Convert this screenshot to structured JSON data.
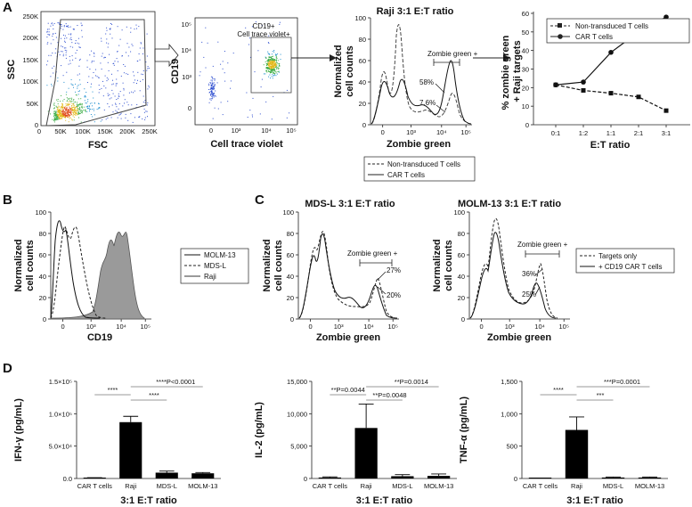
{
  "panels": {
    "A": "A",
    "B": "B",
    "C": "C",
    "D": "D"
  },
  "a1": {
    "xlabel": "FSC",
    "ylabel": "SSC",
    "xticks": [
      "0",
      "50K",
      "100K",
      "150K",
      "200K",
      "250K"
    ],
    "yticks": [
      "0",
      "50K",
      "100K",
      "150K",
      "200K",
      "250K"
    ]
  },
  "a2": {
    "xlabel": "Cell trace violet",
    "ylabel": "CD19",
    "xticks": [
      "0",
      "10³",
      "10⁴",
      "10⁵"
    ],
    "yticks": [
      "0",
      "10³",
      "10⁴",
      "10⁵"
    ],
    "gate_label_1": "CD19+",
    "gate_label_2": "Cell trace violet+"
  },
  "a3": {
    "title": "Raji 3:1 E:T ratio",
    "xlabel": "Zombie green",
    "ylabel_1": "Normalized",
    "ylabel_2": "cell counts",
    "xticks": [
      "0",
      "10³",
      "10⁴",
      "10⁵"
    ],
    "yticks": [
      "0",
      "20",
      "40",
      "60",
      "80",
      "100"
    ],
    "gate": "Zombie green +",
    "pct_1": "58%",
    "pct_2": "7.6%",
    "legend": [
      "Non-transduced T cells",
      "CAR T cells"
    ]
  },
  "chart_data": [
    {
      "type": "line",
      "title": "",
      "xlabel": "E:T ratio",
      "ylabel": "% zombie green + Raji targets",
      "categories": [
        "0:1",
        "1:2",
        "1:1",
        "2:1",
        "3:1"
      ],
      "ylim": [
        0,
        60
      ],
      "yticks": [
        "0",
        "10",
        "20",
        "30",
        "40",
        "50",
        "60"
      ],
      "series": [
        {
          "name": "Non-transduced T cells",
          "values": [
            21.5,
            18.5,
            17,
            15,
            7.6
          ],
          "style": "dashed-square"
        },
        {
          "name": "CAR T cells",
          "values": [
            21.5,
            23,
            39,
            50,
            58
          ],
          "style": "solid-circle"
        }
      ]
    },
    {
      "type": "bar",
      "panel": "D1",
      "categories": [
        "CAR T cells",
        "Raji",
        "MDS-L",
        "MOLM-13"
      ],
      "values": [
        1000,
        87000,
        9000,
        8000
      ],
      "errors": [
        300,
        9000,
        2500,
        1200
      ],
      "ylabel": "IFN-γ (pg/mL)",
      "xlabel": "3:1 E:T ratio",
      "ylim": [
        0,
        150000
      ],
      "yticks": [
        "0.0",
        "5.0×10⁴",
        "1.0×10⁵",
        "1.5×10⁵"
      ],
      "annotations": [
        "****",
        "****",
        "****P<0.0001"
      ]
    },
    {
      "type": "bar",
      "panel": "D2",
      "categories": [
        "CAR T cells",
        "Raji",
        "MDS-L",
        "MOLM-13"
      ],
      "values": [
        150,
        7800,
        350,
        400
      ],
      "errors": [
        100,
        3700,
        250,
        300
      ],
      "ylabel": "IL-2 (pg/mL)",
      "xlabel": "3:1 E:T ratio",
      "ylim": [
        0,
        15000
      ],
      "yticks": [
        "0",
        "5,000",
        "10,000",
        "15,000"
      ],
      "annotations": [
        "**P=0.0044",
        "**P=0.0048",
        "**P=0.0014"
      ]
    },
    {
      "type": "bar",
      "panel": "D3",
      "categories": [
        "CAR T cells",
        "Raji",
        "MDS-L",
        "MOLM-13"
      ],
      "values": [
        5,
        750,
        15,
        15
      ],
      "errors": [
        3,
        200,
        8,
        8
      ],
      "ylabel": "TNF-α (pg/mL)",
      "xlabel": "3:1 E:T ratio",
      "ylim": [
        0,
        1500
      ],
      "yticks": [
        "0",
        "500",
        "1,000",
        "1,500"
      ],
      "annotations": [
        "****",
        "***",
        "***P=0.0001"
      ]
    }
  ],
  "b": {
    "xlabel": "CD19",
    "ylabel_1": "Normalized",
    "ylabel_2": "cell counts",
    "xticks": [
      "0",
      "10³",
      "10⁴",
      "10⁵"
    ],
    "yticks": [
      "0",
      "20",
      "40",
      "60",
      "80",
      "100"
    ],
    "legend": [
      "MOLM-13",
      "MDS-L",
      "Raji"
    ]
  },
  "c1": {
    "title": "MDS-L 3:1 E:T ratio",
    "xlabel": "Zombie green",
    "ylabel_1": "Normalized",
    "ylabel_2": "cell counts",
    "xticks": [
      "0",
      "10³",
      "10⁴",
      "10⁵"
    ],
    "yticks": [
      "0",
      "20",
      "40",
      "60",
      "80",
      "100"
    ],
    "gate": "Zombie green +",
    "pct_1": "27%",
    "pct_2": "20%"
  },
  "c2": {
    "title": "MOLM-13 3:1 E:T ratio",
    "xlabel": "Zombie green",
    "ylabel_1": "Normalized",
    "ylabel_2": "cell counts",
    "xticks": [
      "0",
      "10³",
      "10⁴",
      "10⁵"
    ],
    "yticks": [
      "0",
      "20",
      "40",
      "60",
      "80",
      "100"
    ],
    "gate": "Zombie green +",
    "pct_1": "36%",
    "pct_2": "25%",
    "legend": [
      "Targets only",
      "+ CD19 CAR T cells"
    ]
  }
}
